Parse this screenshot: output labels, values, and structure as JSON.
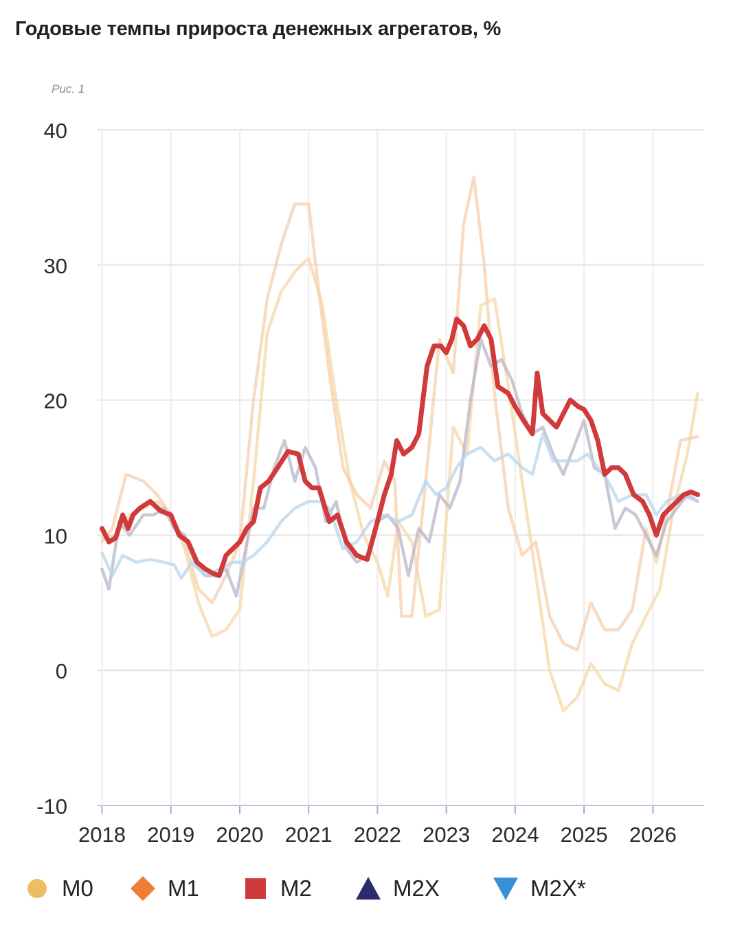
{
  "title": "Годовые темпы прироста денежных агрегатов, %",
  "figure_label": "Рис. 1",
  "colors": {
    "M0": "#f0c070",
    "M1": "#f0a060",
    "M2": "#d03a3a",
    "M2X": "#2a2a6a",
    "M2X_star": "#3a8ad0"
  },
  "legend": [
    {
      "label": "M0",
      "marker": "circle",
      "color": "#ecbd62"
    },
    {
      "label": "M1",
      "marker": "diamond",
      "color": "#ef7d35"
    },
    {
      "label": "M2",
      "marker": "square",
      "color": "#d03a3a"
    },
    {
      "label": "M2X",
      "marker": "triangle-up",
      "color": "#2e2a6e"
    },
    {
      "label": "M2X*",
      "marker": "triangle-down",
      "color": "#3b8fd6"
    }
  ],
  "chart_data": {
    "type": "line",
    "title": "Годовые темпы прироста денежных агрегатов, %",
    "ylim": [
      -10,
      40
    ],
    "xlim": [
      2018,
      2026.75
    ],
    "y_ticks": [
      "40",
      "30",
      "20",
      "10",
      "0",
      "-10"
    ],
    "x_ticks": [
      "2018",
      "2019",
      "2020",
      "2021",
      "2022",
      "2023",
      "2024",
      "2025",
      "2026"
    ],
    "grid": true,
    "legend_position": "bottom",
    "series": [
      {
        "name": "M0",
        "emphasis": "faded",
        "color": "#f5d8a8",
        "x": [
          2018.0,
          2018.2,
          2018.4,
          2018.6,
          2018.8,
          2019.0,
          2019.2,
          2019.4,
          2019.6,
          2019.8,
          2020.0,
          2020.2,
          2020.4,
          2020.6,
          2020.8,
          2021.0,
          2021.2,
          2021.4,
          2021.6,
          2021.8,
          2022.0,
          2022.15,
          2022.3,
          2022.5,
          2022.7,
          2022.9,
          2023.1,
          2023.3,
          2023.5,
          2023.7,
          2023.9,
          2024.1,
          2024.3,
          2024.5,
          2024.7,
          2024.9,
          2025.1,
          2025.3,
          2025.5,
          2025.7,
          2025.9,
          2026.1,
          2026.3,
          2026.5,
          2026.65
        ],
        "y": [
          9.8,
          10.0,
          11.5,
          12.0,
          12.5,
          11.5,
          9.0,
          5.0,
          2.5,
          3.0,
          4.5,
          14.0,
          25.0,
          28.0,
          29.5,
          30.5,
          27.0,
          20.0,
          14.0,
          10.0,
          8.0,
          5.5,
          11.0,
          9.5,
          4.0,
          4.5,
          18.0,
          16.0,
          27.0,
          27.5,
          21.0,
          14.0,
          7.0,
          0.0,
          -3.0,
          -2.0,
          0.5,
          -1.0,
          -1.5,
          2.0,
          4.0,
          6.0,
          12.0,
          16.0,
          20.5
        ]
      },
      {
        "name": "M1",
        "emphasis": "faded",
        "color": "#f7cfae",
        "x": [
          2018.0,
          2018.15,
          2018.35,
          2018.6,
          2018.8,
          2019.0,
          2019.2,
          2019.4,
          2019.6,
          2019.8,
          2020.0,
          2020.2,
          2020.4,
          2020.6,
          2020.8,
          2021.0,
          2021.15,
          2021.3,
          2021.5,
          2021.7,
          2021.9,
          2022.1,
          2022.25,
          2022.35,
          2022.5,
          2022.7,
          2022.9,
          2023.1,
          2023.25,
          2023.4,
          2023.55,
          2023.7,
          2023.9,
          2024.1,
          2024.3,
          2024.5,
          2024.7,
          2024.9,
          2025.1,
          2025.3,
          2025.5,
          2025.7,
          2025.9,
          2026.05,
          2026.2,
          2026.4,
          2026.65
        ],
        "y": [
          9.5,
          10.5,
          14.5,
          14.0,
          13.0,
          11.5,
          9.5,
          6.0,
          5.0,
          7.0,
          9.5,
          20.0,
          27.5,
          31.5,
          34.5,
          34.5,
          28.0,
          22.0,
          15.0,
          13.0,
          12.0,
          15.5,
          14.0,
          4.0,
          4.0,
          14.0,
          24.5,
          22.0,
          33.0,
          36.5,
          30.0,
          20.5,
          12.0,
          8.5,
          9.5,
          4.0,
          2.0,
          1.5,
          5.0,
          3.0,
          3.0,
          4.5,
          10.5,
          8.0,
          11.5,
          17.0,
          17.3
        ]
      },
      {
        "name": "M2X",
        "emphasis": "faded",
        "color": "#b8b4c8",
        "x": [
          2018.0,
          2018.1,
          2018.25,
          2018.4,
          2018.6,
          2018.75,
          2018.9,
          2019.05,
          2019.2,
          2019.35,
          2019.5,
          2019.65,
          2019.8,
          2019.95,
          2020.05,
          2020.2,
          2020.35,
          2020.5,
          2020.65,
          2020.8,
          2020.95,
          2021.1,
          2021.25,
          2021.4,
          2021.55,
          2021.7,
          2021.85,
          2022.0,
          2022.15,
          2022.3,
          2022.45,
          2022.6,
          2022.75,
          2022.9,
          2023.05,
          2023.2,
          2023.35,
          2023.5,
          2023.65,
          2023.8,
          2023.95,
          2024.1,
          2024.25,
          2024.4,
          2024.55,
          2024.7,
          2024.85,
          2025.0,
          2025.15,
          2025.3,
          2025.45,
          2025.6,
          2025.75,
          2025.9,
          2026.05,
          2026.2,
          2026.35,
          2026.5,
          2026.65
        ],
        "y": [
          7.5,
          6.0,
          11.0,
          10.0,
          11.5,
          11.5,
          12.0,
          10.5,
          10.0,
          8.0,
          7.0,
          7.0,
          7.5,
          5.5,
          8.0,
          12.0,
          12.0,
          15.0,
          17.0,
          14.0,
          16.5,
          15.0,
          11.0,
          12.5,
          9.0,
          8.0,
          8.5,
          11.0,
          11.5,
          10.5,
          7.0,
          10.5,
          9.5,
          13.0,
          12.0,
          14.0,
          20.0,
          24.5,
          22.5,
          23.0,
          21.5,
          19.0,
          17.5,
          18.0,
          16.0,
          14.5,
          16.5,
          18.5,
          15.0,
          14.5,
          10.5,
          12.0,
          11.5,
          10.0,
          8.5,
          11.0,
          12.0,
          13.0,
          12.5
        ]
      },
      {
        "name": "M2X*",
        "emphasis": "faded",
        "color": "#b8d6ec",
        "x": [
          2018.0,
          2018.15,
          2018.3,
          2018.5,
          2018.7,
          2018.9,
          2019.05,
          2019.15,
          2019.3,
          2019.5,
          2019.7,
          2019.9,
          2020.05,
          2020.2,
          2020.4,
          2020.6,
          2020.8,
          2021.0,
          2021.15,
          2021.3,
          2021.5,
          2021.7,
          2021.9,
          2022.1,
          2022.3,
          2022.5,
          2022.7,
          2022.85,
          2023.0,
          2023.15,
          2023.3,
          2023.5,
          2023.7,
          2023.9,
          2024.1,
          2024.25,
          2024.4,
          2024.55,
          2024.7,
          2024.9,
          2025.05,
          2025.2,
          2025.35,
          2025.5,
          2025.7,
          2025.9,
          2026.05,
          2026.2,
          2026.4,
          2026.65
        ],
        "y": [
          8.7,
          7.0,
          8.5,
          8.0,
          8.2,
          8.0,
          7.8,
          6.8,
          8.0,
          7.0,
          7.5,
          8.0,
          8.0,
          8.5,
          9.5,
          11.0,
          12.0,
          12.5,
          12.5,
          12.0,
          9.0,
          9.5,
          11.0,
          11.5,
          11.0,
          11.5,
          14.0,
          13.0,
          13.5,
          15.0,
          16.0,
          16.5,
          15.5,
          16.0,
          15.0,
          14.5,
          17.5,
          15.5,
          15.5,
          15.5,
          16.0,
          15.0,
          14.0,
          12.5,
          13.0,
          13.0,
          11.5,
          12.5,
          13.0,
          12.5
        ]
      },
      {
        "name": "M2",
        "emphasis": "highlighted",
        "color": "#d03a3a",
        "x": [
          2018.0,
          2018.1,
          2018.2,
          2018.3,
          2018.38,
          2018.45,
          2018.55,
          2018.7,
          2018.85,
          2019.0,
          2019.12,
          2019.25,
          2019.38,
          2019.5,
          2019.6,
          2019.7,
          2019.8,
          2019.9,
          2020.0,
          2020.1,
          2020.2,
          2020.3,
          2020.42,
          2020.55,
          2020.7,
          2020.85,
          2020.95,
          2021.05,
          2021.15,
          2021.3,
          2021.42,
          2021.55,
          2021.7,
          2021.85,
          2022.0,
          2022.1,
          2022.2,
          2022.28,
          2022.38,
          2022.5,
          2022.6,
          2022.72,
          2022.82,
          2022.92,
          2023.0,
          2023.08,
          2023.15,
          2023.25,
          2023.35,
          2023.45,
          2023.55,
          2023.65,
          2023.75,
          2023.9,
          2024.0,
          2024.12,
          2024.25,
          2024.32,
          2024.4,
          2024.5,
          2024.6,
          2024.7,
          2024.8,
          2024.92,
          2025.0,
          2025.1,
          2025.2,
          2025.3,
          2025.4,
          2025.5,
          2025.6,
          2025.72,
          2025.85,
          2025.95,
          2026.05,
          2026.15,
          2026.25,
          2026.35,
          2026.45,
          2026.55,
          2026.65
        ],
        "y": [
          10.5,
          9.5,
          9.8,
          11.5,
          10.5,
          11.5,
          12.0,
          12.5,
          11.8,
          11.5,
          10.0,
          9.5,
          8.0,
          7.5,
          7.2,
          7.0,
          8.5,
          9.0,
          9.5,
          10.5,
          11.0,
          13.5,
          14.0,
          15.0,
          16.2,
          16.0,
          14.0,
          13.5,
          13.5,
          11.0,
          11.5,
          9.5,
          8.5,
          8.2,
          11.0,
          13.0,
          14.5,
          17.0,
          16.0,
          16.5,
          17.5,
          22.5,
          24.0,
          24.0,
          23.5,
          24.5,
          26.0,
          25.5,
          24.0,
          24.5,
          25.5,
          24.5,
          21.0,
          20.5,
          19.5,
          18.5,
          17.5,
          22.0,
          19.0,
          18.5,
          18.0,
          19.0,
          20.0,
          19.5,
          19.3,
          18.5,
          17.0,
          14.5,
          15.0,
          15.0,
          14.5,
          13.0,
          12.5,
          11.5,
          10.0,
          11.5,
          12.0,
          12.5,
          13.0,
          13.2,
          13.0
        ]
      }
    ]
  }
}
